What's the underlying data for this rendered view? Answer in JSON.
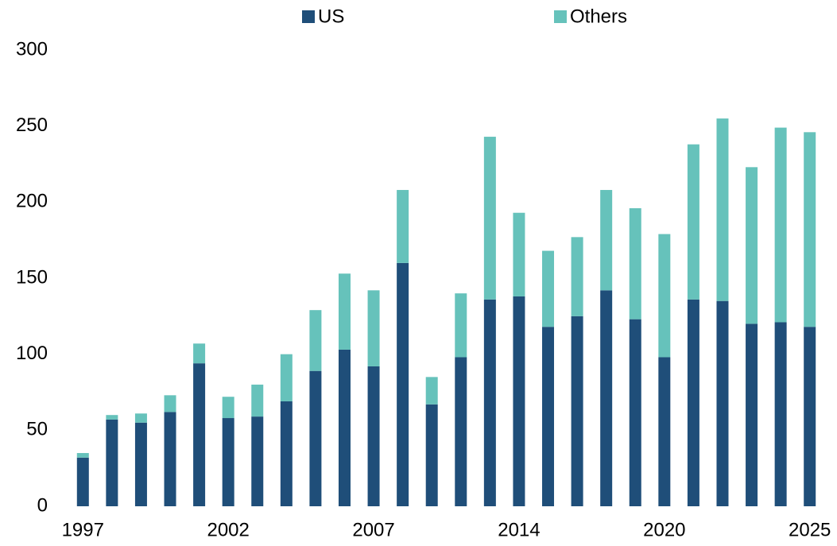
{
  "chart_data": {
    "type": "stacked_bar",
    "categories": [
      "1997",
      null,
      null,
      null,
      null,
      "2002",
      null,
      null,
      null,
      null,
      "2007",
      null,
      null,
      null,
      null,
      "2014",
      null,
      null,
      null,
      null,
      "2020",
      null,
      null,
      null,
      null,
      "2025"
    ],
    "series": [
      {
        "name": "US",
        "color": "#1f4e79",
        "values": [
          32,
          57,
          55,
          62,
          94,
          58,
          59,
          69,
          89,
          103,
          92,
          160,
          67,
          98,
          136,
          138,
          118,
          125,
          142,
          123,
          98,
          136,
          135,
          120,
          121,
          118
        ]
      },
      {
        "name": "Others",
        "color": "#66c2bb",
        "values": [
          3,
          3,
          6,
          11,
          13,
          14,
          21,
          31,
          40,
          50,
          50,
          48,
          18,
          42,
          107,
          55,
          50,
          52,
          66,
          73,
          81,
          102,
          120,
          103,
          128,
          128
        ]
      }
    ],
    "ylim": [
      0,
      300
    ],
    "yticks": [
      0,
      50,
      100,
      150,
      200,
      250,
      300
    ],
    "grid": false,
    "legend": "top"
  }
}
